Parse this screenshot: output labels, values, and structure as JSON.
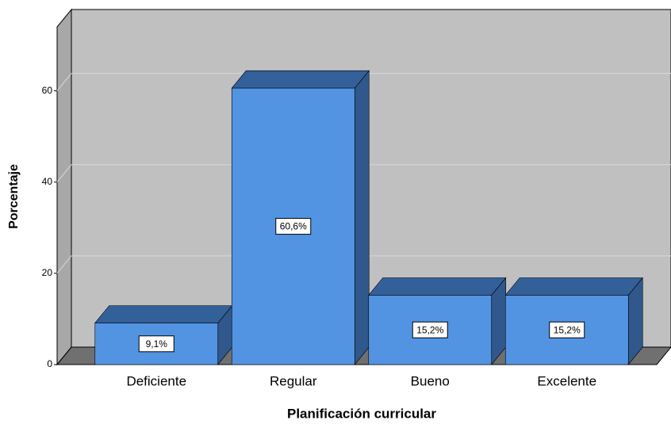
{
  "chart_data": {
    "type": "bar3d",
    "x_label": "Planificación curricular",
    "y_label": "Porcentaje",
    "categories": [
      "Deficiente",
      "Regular",
      "Bueno",
      "Excelente"
    ],
    "values": [
      9.1,
      60.6,
      15.2,
      15.2
    ],
    "value_labels": [
      "9,1%",
      "60,6%",
      "15,2%",
      "15,2%"
    ],
    "color": "#5294e2",
    "ylim": [
      0,
      74
    ],
    "yticks": [
      0,
      20,
      40,
      60
    ],
    "grid": true
  }
}
